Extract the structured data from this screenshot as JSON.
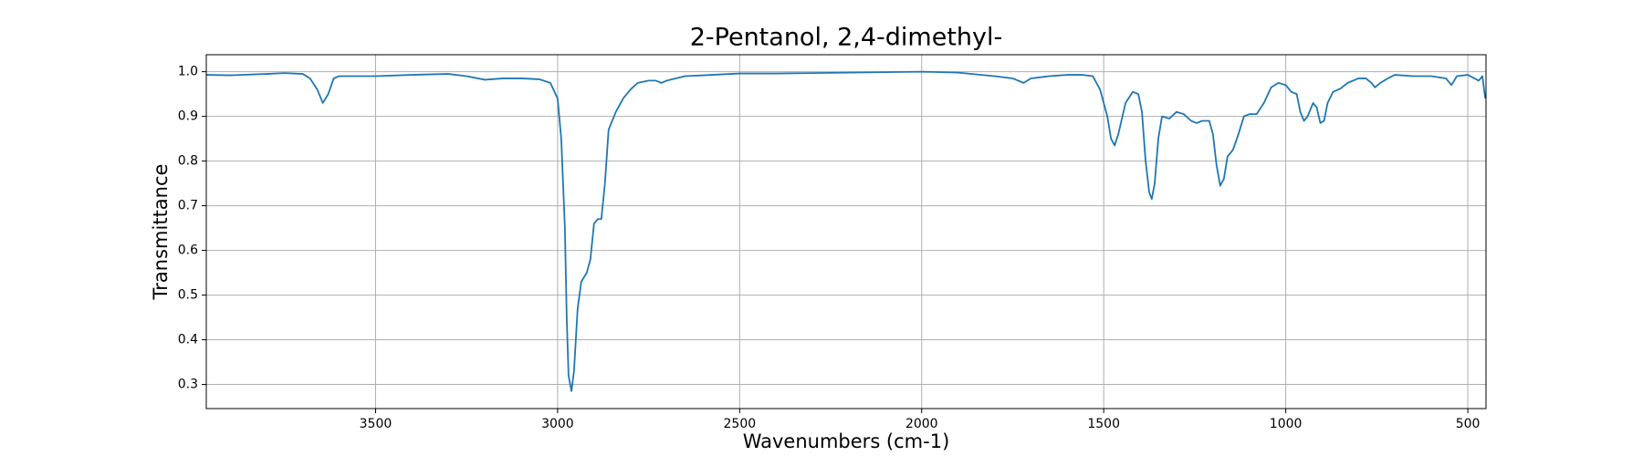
{
  "chart_data": {
    "type": "line",
    "title": "2-Pentanol, 2,4-dimethyl-",
    "x_label": "Wavenumbers (cm-1)",
    "y_label": "Transmittance",
    "x": [
      3965,
      3900,
      3800,
      3750,
      3700,
      3680,
      3660,
      3645,
      3630,
      3615,
      3600,
      3500,
      3400,
      3300,
      3250,
      3200,
      3150,
      3100,
      3050,
      3020,
      3000,
      2990,
      2980,
      2975,
      2970,
      2962,
      2955,
      2945,
      2935,
      2920,
      2910,
      2900,
      2890,
      2880,
      2870,
      2860,
      2840,
      2820,
      2800,
      2780,
      2750,
      2730,
      2715,
      2700,
      2650,
      2600,
      2500,
      2400,
      2300,
      2200,
      2100,
      2000,
      1900,
      1800,
      1750,
      1720,
      1700,
      1650,
      1600,
      1560,
      1530,
      1510,
      1490,
      1480,
      1470,
      1460,
      1440,
      1420,
      1405,
      1395,
      1385,
      1375,
      1368,
      1360,
      1350,
      1340,
      1320,
      1300,
      1280,
      1260,
      1245,
      1230,
      1210,
      1200,
      1190,
      1180,
      1170,
      1160,
      1145,
      1130,
      1115,
      1100,
      1080,
      1060,
      1040,
      1020,
      1000,
      985,
      970,
      960,
      950,
      940,
      925,
      915,
      905,
      895,
      885,
      870,
      850,
      830,
      800,
      780,
      765,
      755,
      740,
      720,
      700,
      650,
      600,
      560,
      545,
      530,
      500,
      470,
      460,
      452
    ],
    "values": [
      0.993,
      0.992,
      0.995,
      0.997,
      0.995,
      0.985,
      0.96,
      0.93,
      0.95,
      0.985,
      0.99,
      0.99,
      0.993,
      0.995,
      0.99,
      0.982,
      0.985,
      0.985,
      0.983,
      0.975,
      0.94,
      0.85,
      0.65,
      0.45,
      0.32,
      0.285,
      0.33,
      0.47,
      0.53,
      0.55,
      0.58,
      0.66,
      0.67,
      0.67,
      0.75,
      0.87,
      0.91,
      0.94,
      0.96,
      0.975,
      0.98,
      0.98,
      0.975,
      0.98,
      0.99,
      0.992,
      0.996,
      0.996,
      0.997,
      0.998,
      0.999,
      1.0,
      0.998,
      0.99,
      0.985,
      0.975,
      0.985,
      0.99,
      0.993,
      0.993,
      0.99,
      0.96,
      0.9,
      0.85,
      0.835,
      0.86,
      0.93,
      0.955,
      0.95,
      0.91,
      0.8,
      0.73,
      0.715,
      0.75,
      0.85,
      0.9,
      0.895,
      0.91,
      0.905,
      0.89,
      0.885,
      0.89,
      0.89,
      0.86,
      0.79,
      0.745,
      0.76,
      0.81,
      0.825,
      0.86,
      0.9,
      0.905,
      0.905,
      0.93,
      0.965,
      0.975,
      0.97,
      0.955,
      0.95,
      0.91,
      0.89,
      0.9,
      0.93,
      0.92,
      0.885,
      0.89,
      0.93,
      0.955,
      0.962,
      0.975,
      0.985,
      0.985,
      0.975,
      0.965,
      0.975,
      0.985,
      0.993,
      0.99,
      0.99,
      0.985,
      0.97,
      0.99,
      0.993,
      0.98,
      0.99,
      0.94
    ],
    "color": "#1f77b4",
    "xlim": [
      3965,
      450
    ],
    "ylim": [
      0.246,
      1.038
    ],
    "xticks": [
      3500,
      3000,
      2500,
      2000,
      1500,
      1000,
      500
    ],
    "yticks": [
      0.3,
      0.4,
      0.5,
      0.6,
      0.7,
      0.8,
      0.9,
      {
        "value": 1,
        "label": "1.0"
      }
    ],
    "grid": true
  }
}
